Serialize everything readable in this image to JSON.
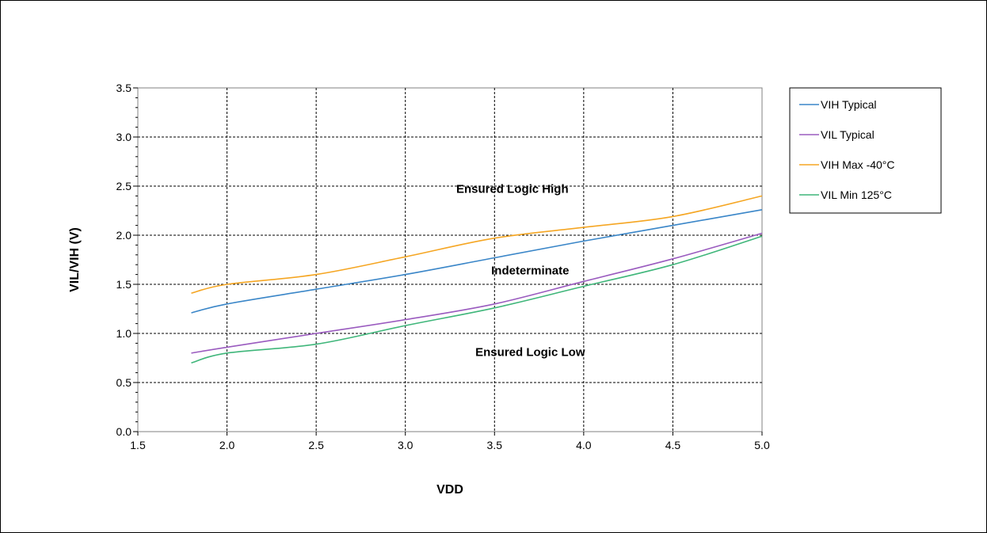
{
  "chart_data": {
    "type": "line",
    "xlabel": "VDD",
    "ylabel": "VIL/VIH (V)",
    "xlim": [
      1.5,
      5.0
    ],
    "ylim": [
      0.0,
      3.5
    ],
    "xticks": [
      "1.5",
      "2.0",
      "2.5",
      "3.0",
      "3.5",
      "4.0",
      "4.5",
      "5.0"
    ],
    "yticks": [
      "0.0",
      "0.5",
      "1.0",
      "1.5",
      "2.0",
      "2.5",
      "3.0",
      "3.5"
    ],
    "grid": true,
    "legend_position": "right",
    "series": [
      {
        "name": "VIH Typical",
        "color": "#3a86c8",
        "x": [
          1.8,
          2.0,
          2.5,
          3.0,
          3.5,
          4.0,
          4.5,
          5.0
        ],
        "y": [
          1.21,
          1.3,
          1.45,
          1.6,
          1.77,
          1.94,
          2.1,
          2.26
        ]
      },
      {
        "name": "VIL Typical",
        "color": "#9a5bbf",
        "x": [
          1.8,
          2.0,
          2.5,
          3.0,
          3.5,
          4.0,
          4.5,
          5.0
        ],
        "y": [
          0.8,
          0.86,
          1.0,
          1.14,
          1.3,
          1.53,
          1.76,
          2.02
        ]
      },
      {
        "name": "VIH Max -40°C",
        "color": "#f5a623",
        "x": [
          1.8,
          2.0,
          2.5,
          3.0,
          3.5,
          4.0,
          4.5,
          5.0
        ],
        "y": [
          1.41,
          1.5,
          1.6,
          1.78,
          1.97,
          2.08,
          2.19,
          2.4
        ]
      },
      {
        "name": "VIL Min 125°C",
        "color": "#3fb67a",
        "x": [
          1.8,
          2.0,
          2.5,
          3.0,
          3.5,
          4.0,
          4.5,
          5.0
        ],
        "y": [
          0.7,
          0.8,
          0.89,
          1.08,
          1.26,
          1.48,
          1.7,
          1.99
        ]
      }
    ],
    "annotations": [
      {
        "text": "Ensured Logic High",
        "x": 3.6,
        "y": 2.43
      },
      {
        "text": "Indeterminate",
        "x": 3.7,
        "y": 1.6
      },
      {
        "text": "Ensured Logic Low",
        "x": 3.7,
        "y": 0.77
      }
    ]
  }
}
